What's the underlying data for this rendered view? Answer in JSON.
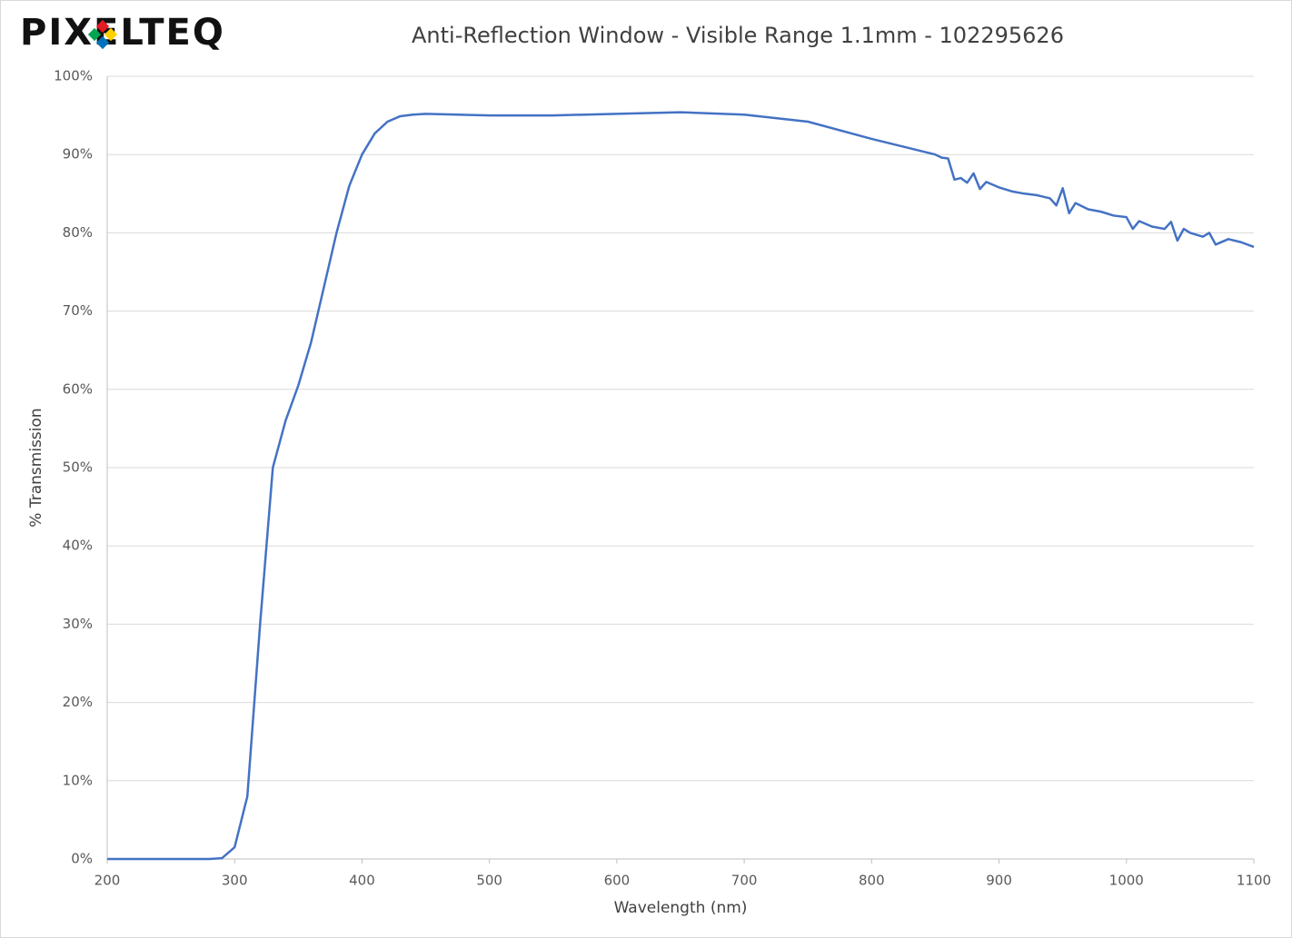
{
  "chart_data": {
    "type": "line",
    "logo": "PIXELTEQ",
    "title": "Anti-Reflection Window - Visible Range 1.1mm - 102295626",
    "x_label": "Wavelength (nm)",
    "y_label": "% Transmission",
    "x": [
      200,
      220,
      240,
      260,
      280,
      290,
      300,
      310,
      320,
      330,
      340,
      350,
      360,
      370,
      380,
      390,
      400,
      410,
      420,
      430,
      440,
      450,
      500,
      550,
      600,
      650,
      700,
      750,
      800,
      850,
      855,
      860,
      865,
      870,
      875,
      880,
      885,
      890,
      900,
      910,
      920,
      930,
      940,
      945,
      950,
      955,
      960,
      970,
      980,
      990,
      1000,
      1005,
      1010,
      1020,
      1030,
      1035,
      1040,
      1045,
      1050,
      1060,
      1065,
      1070,
      1080,
      1090,
      1100
    ],
    "series": [
      {
        "name": "% Transmission",
        "color": "#4472c4",
        "values": [
          0,
          0,
          0,
          0,
          0,
          0.1,
          1.5,
          8,
          30,
          50,
          56,
          60.5,
          66,
          73,
          80,
          86,
          90,
          92.7,
          94.2,
          94.9,
          95.1,
          95.2,
          95.0,
          95.0,
          95.2,
          95.4,
          95.1,
          94.2,
          92.0,
          90.0,
          89.6,
          89.5,
          86.8,
          87.0,
          86.4,
          87.6,
          85.6,
          86.5,
          85.8,
          85.3,
          85.0,
          84.8,
          84.4,
          83.5,
          85.7,
          82.5,
          83.8,
          83.0,
          82.7,
          82.2,
          82.0,
          80.5,
          81.5,
          80.8,
          80.5,
          81.4,
          79.0,
          80.5,
          80.0,
          79.5,
          80.0,
          78.5,
          79.2,
          78.8,
          78.2
        ]
      }
    ],
    "xlim": [
      200,
      1100
    ],
    "xticks": [
      200,
      300,
      400,
      500,
      600,
      700,
      800,
      900,
      1000,
      1100
    ],
    "ylim": [
      0,
      100
    ],
    "yticks": [
      {
        "value": 0,
        "label": "0%"
      },
      {
        "value": 10,
        "label": "10%"
      },
      {
        "value": 20,
        "label": "20%"
      },
      {
        "value": 30,
        "label": "30%"
      },
      {
        "value": 40,
        "label": "40%"
      },
      {
        "value": 50,
        "label": "50%"
      },
      {
        "value": 60,
        "label": "60%"
      },
      {
        "value": 70,
        "label": "70%"
      },
      {
        "value": 80,
        "label": "80%"
      },
      {
        "value": 90,
        "label": "90%"
      },
      {
        "value": 100,
        "label": "100%"
      }
    ],
    "grid": true
  }
}
